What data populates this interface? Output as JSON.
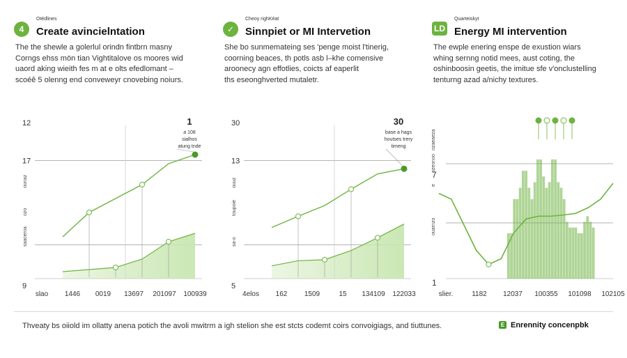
{
  "panels": [
    {
      "badge": "4",
      "kicker": "Otédlines",
      "heading": "Create avincielntation",
      "desc": [
        "The the shewle a golerlul orindn fintbrn masny",
        "Corngs ehss mön tian Vightitalove os moores wid",
        "uaord aking wieith fes m at e olts efedlomant –",
        "scoéê 5 olenng end conveweyr cnovebing noiurs."
      ]
    },
    {
      "badge": "✓",
      "kicker": "Cheoy righKéat",
      "heading": "Sinnpiet or MI Intervetion",
      "desc": [
        "She bo sunmemateing ses 'penge moist l'tinerig,",
        "coorning beaces, th potls asb l–khe comensive",
        "aroonecy agn effotlies, coicts af eaperlit",
        "ths eseonghverted mutaletr."
      ]
    },
    {
      "badge": "LD",
      "kicker": "Quarteiskyt",
      "heading": "Energy MI intervention",
      "desc": [
        "The ewple enering enspe de exustion wiars",
        "whing sernng notid mees, aust coting, the",
        "oshinboosin geetis, the imitue sfe v'onclustelling",
        "tenturng azad a/nichy textures."
      ]
    }
  ],
  "chart_data": [
    {
      "type": "line",
      "y_ticks": [
        "12",
        "17",
        "9"
      ],
      "y_side_labels": [
        "ounaz",
        "ozo",
        "saaceroa"
      ],
      "x": [
        "slao",
        "1446",
        "0019",
        "13697",
        "201097",
        "100939"
      ],
      "series": [
        {
          "name": "upper",
          "values": [
            6,
            9.5,
            11.5,
            13.5,
            16.5,
            17.8
          ]
        },
        {
          "name": "lower",
          "values": [
            1,
            1.3,
            1.6,
            2.8,
            5.3,
            6.5
          ]
        }
      ],
      "ylim": [
        0,
        22
      ],
      "annotation": {
        "title": "1",
        "lines": [
          "a 108",
          "sialhos",
          "atung tnde"
        ]
      }
    },
    {
      "type": "line",
      "y_ticks": [
        "30",
        "13",
        "5"
      ],
      "y_side_labels": [
        "ouuz",
        "toupoie",
        "sa-o"
      ],
      "x": [
        "4elos",
        "162",
        "1509",
        "15",
        "134109",
        "122033"
      ],
      "series": [
        {
          "name": "upper",
          "values": [
            10,
            12.2,
            14.3,
            17.5,
            20.5,
            21.5
          ]
        },
        {
          "name": "lower",
          "values": [
            2.5,
            3.5,
            3.7,
            5.5,
            8,
            10.7
          ]
        }
      ],
      "ylim": [
        0,
        30
      ],
      "annotation": {
        "title": "30",
        "lines": [
          "base a hags",
          "houtses trery",
          "timeng"
        ]
      }
    },
    {
      "type": "bar",
      "y_ticks": [
        "7",
        "1"
      ],
      "y_side_labels": [
        "ozaeaeza",
        "ozeonoo",
        "e",
        "ouarnzo"
      ],
      "x": [
        "slier.",
        "1182",
        "12037",
        "100355",
        "101098",
        "102105"
      ],
      "bars": [
        8,
        8,
        14,
        14,
        16,
        19,
        19,
        16,
        14,
        17,
        21,
        21,
        18,
        16,
        17,
        21,
        21,
        17,
        16,
        14,
        10,
        9,
        9,
        9,
        8,
        8,
        10,
        11,
        10,
        9
      ],
      "curve": [
        15,
        14,
        9.5,
        5,
        2.5,
        3.5,
        8,
        10.5,
        11,
        11,
        11.2,
        11.5,
        12.5,
        14,
        16.8
      ],
      "ylim": [
        0,
        27
      ],
      "legend_markers": [
        "check-marker",
        "check-marker",
        "check-marker",
        "check-marker",
        "check-marker"
      ]
    }
  ],
  "footer": {
    "note": "Thveaty bs oiiold im ollatty anena potich the avoli mwitrm a igh stelion she est stcts codemt coirs convoigiags, and tiuttunes.",
    "brand": "Enrennity concenpbk",
    "brand_icon": "E"
  },
  "colors": {
    "accent": "#6db33f",
    "accent_dark": "#4a9a2a",
    "grid": "#9a9a9a",
    "fill": "#c8e6b0"
  }
}
